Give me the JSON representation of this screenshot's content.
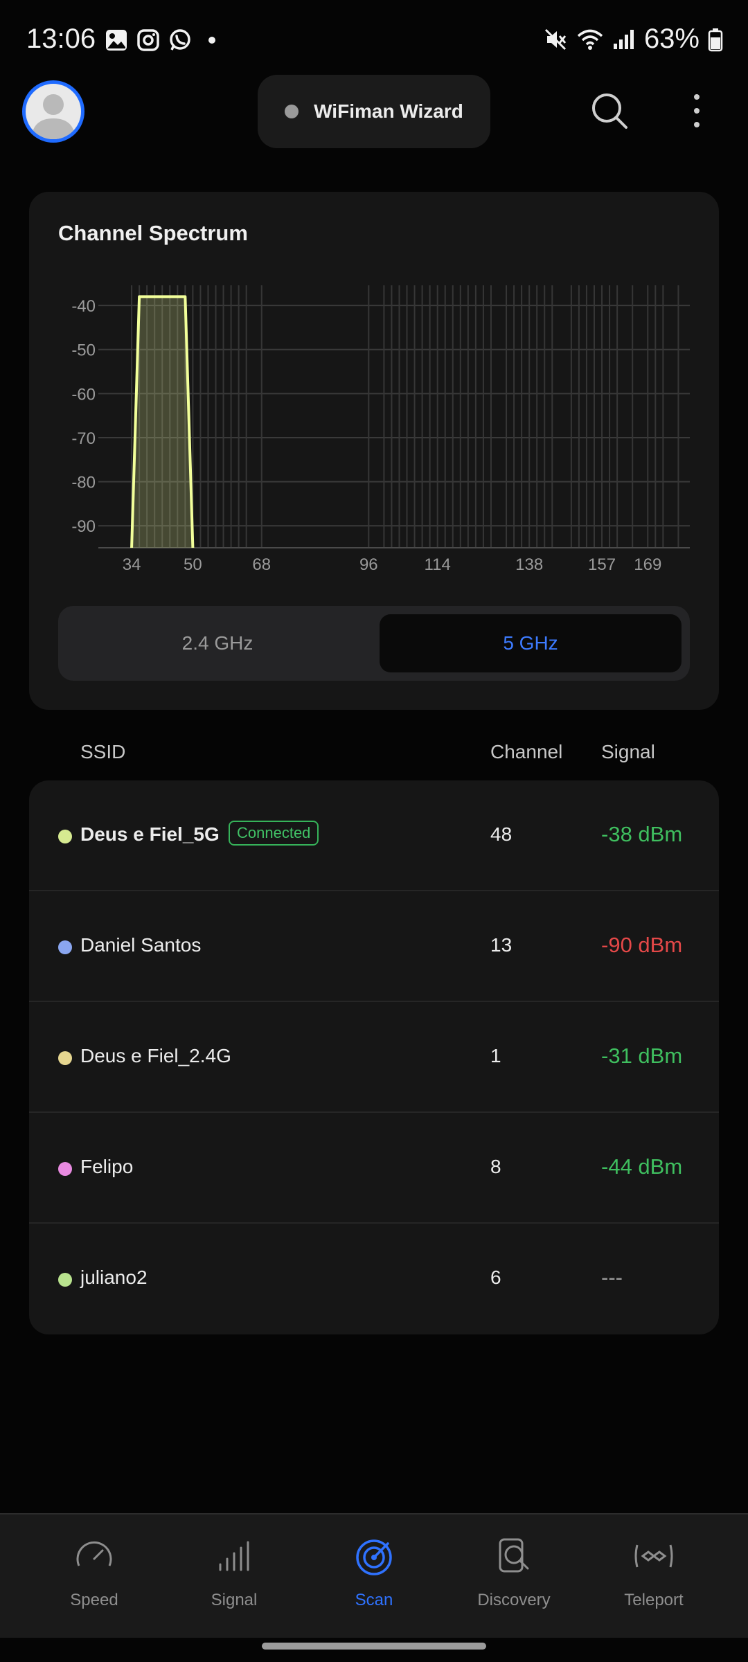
{
  "status_bar": {
    "time": "13:06",
    "battery": "63%",
    "left_icons": [
      "gallery-icon",
      "instagram-icon",
      "whatsapp-icon",
      "dot-icon"
    ],
    "right_icons": [
      "mute-icon",
      "wifi-icon",
      "signal-icon",
      "battery-icon"
    ]
  },
  "header": {
    "wizard_label": "WiFiman Wizard"
  },
  "spectrum": {
    "title": "Channel Spectrum"
  },
  "chart_data": {
    "type": "area",
    "title": "Channel Spectrum",
    "y_ticks": [
      -40,
      -50,
      -60,
      -70,
      -80,
      -90
    ],
    "ylim": [
      -95,
      -37
    ],
    "x_tick_labels": [
      "34",
      "50",
      "68",
      "96",
      "114",
      "138",
      "157",
      "169"
    ],
    "x_tick_values": [
      34,
      50,
      68,
      96,
      114,
      138,
      157,
      169
    ],
    "xlim": [
      30,
      180
    ],
    "grid": true,
    "channel_lines": [
      36,
      38,
      40,
      42,
      44,
      46,
      48,
      52,
      54,
      56,
      58,
      60,
      62,
      64,
      100,
      102,
      104,
      106,
      108,
      110,
      112,
      116,
      118,
      120,
      122,
      124,
      126,
      128,
      132,
      134,
      136,
      140,
      142,
      144,
      149,
      151,
      153,
      155,
      159,
      161,
      165,
      171,
      173,
      177
    ],
    "series": [
      {
        "color": "#f2ff9a",
        "points": [
          [
            34,
            -95
          ],
          [
            36,
            -38
          ],
          [
            48,
            -38
          ],
          [
            50,
            -95
          ]
        ]
      }
    ]
  },
  "band_toggle": {
    "option_24": "2.4 GHz",
    "option_5": "5 GHz",
    "selected": "5 GHz"
  },
  "table": {
    "headers": {
      "ssid": "SSID",
      "channel": "Channel",
      "signal": "Signal"
    },
    "rows": [
      {
        "ssid": "Deus e Fiel_5G",
        "badge": "Connected",
        "channel": "48",
        "signal": "-38 dBm",
        "dot_color": "#d6ea91",
        "signal_color": "#3fbf5f"
      },
      {
        "ssid": "Daniel Santos",
        "badge": "",
        "channel": "13",
        "signal": "-90 dBm",
        "dot_color": "#8aa6f0",
        "signal_color": "#e44848"
      },
      {
        "ssid": "Deus e Fiel_2.4G",
        "badge": "",
        "channel": "1",
        "signal": "-31 dBm",
        "dot_color": "#e6d690",
        "signal_color": "#3fbf5f"
      },
      {
        "ssid": "Felipo",
        "badge": "",
        "channel": "8",
        "signal": "-44 dBm",
        "dot_color": "#e88ae0",
        "signal_color": "#3fbf5f"
      },
      {
        "ssid": "juliano2",
        "badge": "",
        "channel": "6",
        "signal": "---",
        "dot_color": "#b9e38e",
        "signal_color": "#9a9a9a"
      }
    ]
  },
  "bottom_nav": {
    "items": [
      {
        "label": "Speed",
        "icon": "speedometer-icon"
      },
      {
        "label": "Signal",
        "icon": "signal-bars-icon"
      },
      {
        "label": "Scan",
        "icon": "radar-icon"
      },
      {
        "label": "Discovery",
        "icon": "device-search-icon"
      },
      {
        "label": "Teleport",
        "icon": "teleport-icon"
      }
    ],
    "active": "Scan"
  }
}
